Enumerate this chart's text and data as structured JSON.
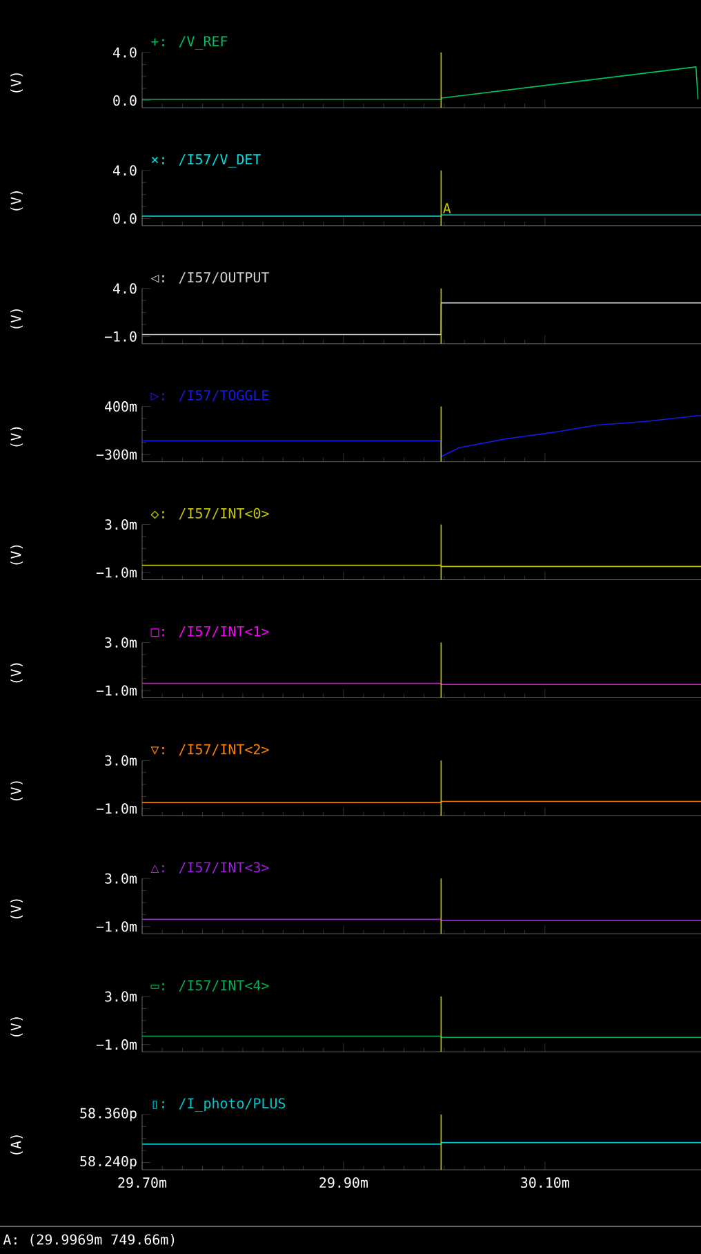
{
  "chart_data": [
    {
      "type": "line",
      "legend": "top left",
      "tick_labels": "y",
      "ylabel": "(V)",
      "xlim": [
        29.7,
        30.255
      ],
      "ylim": [
        -0.6,
        4.0
      ],
      "xticks": [
        {
          "value": 29.7,
          "label": null
        },
        {
          "value": 29.9,
          "label": null
        },
        {
          "value": 30.1,
          "label": null
        }
      ],
      "yticks": [
        {
          "value": 0.0,
          "label": "0.0"
        },
        {
          "value": 4.0,
          "label": "4.0"
        }
      ],
      "ref_lines": [
        {
          "axis": "x",
          "value": 29.9969,
          "color": "#c8c800"
        }
      ],
      "series": [
        {
          "name": "+: /V_REF",
          "color": "#00c060",
          "x": [
            29.7,
            29.9969,
            29.9975,
            30.25,
            30.252
          ],
          "values": [
            0.1,
            0.1,
            0.2,
            2.8,
            0.1
          ]
        }
      ]
    },
    {
      "type": "line",
      "legend": "top left",
      "tick_labels": "y",
      "ylabel": "(V)",
      "xlim": [
        29.7,
        30.255
      ],
      "ylim": [
        -0.6,
        4.0
      ],
      "xticks": [
        {
          "value": 29.7,
          "label": null
        },
        {
          "value": 29.9,
          "label": null
        },
        {
          "value": 30.1,
          "label": null
        }
      ],
      "yticks": [
        {
          "value": 0.0,
          "label": "0.0"
        },
        {
          "value": 4.0,
          "label": "4.0"
        }
      ],
      "ref_lines": [
        {
          "axis": "x",
          "value": 29.9969,
          "color": "#c8c800",
          "label": "A"
        }
      ],
      "series": [
        {
          "name": "×: /I57/V_DET",
          "color": "#00e0e0",
          "x": [
            29.7,
            29.9969,
            29.9975,
            30.255
          ],
          "values": [
            0.2,
            0.2,
            0.3,
            0.3
          ]
        }
      ]
    },
    {
      "type": "line",
      "legend": "top left",
      "tick_labels": "y",
      "ylabel": "(V)",
      "xlim": [
        29.7,
        30.255
      ],
      "ylim": [
        -1.75,
        4.0
      ],
      "xticks": [
        {
          "value": 29.7,
          "label": null
        },
        {
          "value": 29.9,
          "label": null
        },
        {
          "value": 30.1,
          "label": null
        }
      ],
      "yticks": [
        {
          "value": -1.0,
          "label": "−1.0"
        },
        {
          "value": 4.0,
          "label": "4.0"
        }
      ],
      "ref_lines": [
        {
          "axis": "x",
          "value": 29.9969,
          "color": "#c8c800"
        }
      ],
      "series": [
        {
          "name": "◁: /I57/OUTPUT",
          "color": "#d0d0d8",
          "x": [
            29.7,
            29.9969,
            29.997,
            30.255
          ],
          "values": [
            -0.8,
            -0.8,
            2.5,
            2.5
          ]
        }
      ]
    },
    {
      "type": "line",
      "legend": "top left",
      "tick_labels": "y",
      "ylabel": "(V)",
      "xlim": [
        29.7,
        30.255
      ],
      "ylim": [
        -405,
        400
      ],
      "xticks": [
        {
          "value": 29.7,
          "label": null
        },
        {
          "value": 29.9,
          "label": null
        },
        {
          "value": 30.1,
          "label": null
        }
      ],
      "yticks": [
        {
          "value": -300,
          "label": "−300m"
        },
        {
          "value": 400,
          "label": "400m"
        }
      ],
      "ref_lines": [
        {
          "axis": "x",
          "value": 29.9969,
          "color": "#c8c800"
        }
      ],
      "series": [
        {
          "name": "▷: /I57/TOGGLE",
          "color": "#1818e8",
          "x": [
            29.7,
            29.9969,
            29.997,
            30.015,
            30.062,
            30.107,
            30.152,
            30.199,
            30.255
          ],
          "values": [
            -100,
            -100,
            -330,
            -200,
            -70,
            20,
            130,
            180,
            270
          ]
        }
      ]
    },
    {
      "type": "line",
      "legend": "top left",
      "tick_labels": "y",
      "ylabel": "(V)",
      "xlim": [
        29.7,
        30.255
      ],
      "ylim": [
        -1.6,
        3.0
      ],
      "xticks": [
        {
          "value": 29.7,
          "label": null
        },
        {
          "value": 29.9,
          "label": null
        },
        {
          "value": 30.1,
          "label": null
        }
      ],
      "yticks": [
        {
          "value": -1.0,
          "label": "−1.0m"
        },
        {
          "value": 3.0,
          "label": "3.0m"
        }
      ],
      "ref_lines": [
        {
          "axis": "x",
          "value": 29.9969,
          "color": "#c8c800"
        }
      ],
      "series": [
        {
          "name": "◇: /I57/INT<0>",
          "color": "#c8c800",
          "x": [
            29.7,
            29.9969,
            29.997,
            30.255
          ],
          "values": [
            -0.4,
            -0.4,
            -0.5,
            -0.5
          ]
        }
      ]
    },
    {
      "type": "line",
      "legend": "top left",
      "tick_labels": "y",
      "ylabel": "(V)",
      "xlim": [
        29.7,
        30.255
      ],
      "ylim": [
        -1.6,
        3.0
      ],
      "xticks": [
        {
          "value": 29.7,
          "label": null
        },
        {
          "value": 29.9,
          "label": null
        },
        {
          "value": 30.1,
          "label": null
        }
      ],
      "yticks": [
        {
          "value": -1.0,
          "label": "−1.0m"
        },
        {
          "value": 3.0,
          "label": "3.0m"
        }
      ],
      "ref_lines": [
        {
          "axis": "x",
          "value": 29.9969,
          "color": "#c8c800"
        }
      ],
      "series": [
        {
          "name": "□: /I57/INT<1>",
          "color": "#ff00ff",
          "x": [
            29.7,
            29.9969,
            29.997,
            30.255
          ],
          "values": [
            -0.4,
            -0.4,
            -0.5,
            -0.5
          ]
        }
      ]
    },
    {
      "type": "line",
      "legend": "top left",
      "tick_labels": "y",
      "ylabel": "(V)",
      "xlim": [
        29.7,
        30.255
      ],
      "ylim": [
        -1.6,
        3.0
      ],
      "xticks": [
        {
          "value": 29.7,
          "label": null
        },
        {
          "value": 29.9,
          "label": null
        },
        {
          "value": 30.1,
          "label": null
        }
      ],
      "yticks": [
        {
          "value": -1.0,
          "label": "−1.0m"
        },
        {
          "value": 3.0,
          "label": "3.0m"
        }
      ],
      "ref_lines": [
        {
          "axis": "x",
          "value": 29.9969,
          "color": "#c8c800"
        }
      ],
      "series": [
        {
          "name": "▽: /I57/INT<2>",
          "color": "#ff8000",
          "x": [
            29.7,
            29.9969,
            29.997,
            30.255
          ],
          "values": [
            -0.5,
            -0.5,
            -0.4,
            -0.4
          ]
        }
      ]
    },
    {
      "type": "line",
      "legend": "top left",
      "tick_labels": "y",
      "ylabel": "(V)",
      "xlim": [
        29.7,
        30.255
      ],
      "ylim": [
        -1.6,
        3.0
      ],
      "xticks": [
        {
          "value": 29.7,
          "label": null
        },
        {
          "value": 29.9,
          "label": null
        },
        {
          "value": 30.1,
          "label": null
        }
      ],
      "yticks": [
        {
          "value": -1.0,
          "label": "−1.0m"
        },
        {
          "value": 3.0,
          "label": "3.0m"
        }
      ],
      "ref_lines": [
        {
          "axis": "x",
          "value": 29.9969,
          "color": "#c8c800"
        }
      ],
      "series": [
        {
          "name": "△: /I57/INT<3>",
          "color": "#a020e0",
          "x": [
            29.7,
            29.9969,
            29.997,
            30.255
          ],
          "values": [
            -0.4,
            -0.4,
            -0.5,
            -0.5
          ]
        }
      ]
    },
    {
      "type": "line",
      "legend": "top left",
      "tick_labels": "y",
      "ylabel": "(V)",
      "xlim": [
        29.7,
        30.255
      ],
      "ylim": [
        -1.6,
        3.0
      ],
      "xticks": [
        {
          "value": 29.7,
          "label": null
        },
        {
          "value": 29.9,
          "label": null
        },
        {
          "value": 30.1,
          "label": null
        }
      ],
      "yticks": [
        {
          "value": -1.0,
          "label": "−1.0m"
        },
        {
          "value": 3.0,
          "label": "3.0m"
        }
      ],
      "ref_lines": [
        {
          "axis": "x",
          "value": 29.9969,
          "color": "#c8c800"
        }
      ],
      "series": [
        {
          "name": "▭: /I57/INT<4>",
          "color": "#00b050",
          "x": [
            29.7,
            29.9969,
            29.997,
            30.255
          ],
          "values": [
            -0.3,
            -0.3,
            -0.4,
            -0.4
          ]
        }
      ]
    },
    {
      "type": "line",
      "legend": "top left",
      "ylabel": "(A)",
      "xlim": [
        29.7,
        30.255
      ],
      "ylim": [
        58.222,
        58.36
      ],
      "xticks": [
        {
          "value": 29.7,
          "label": "29.70m"
        },
        {
          "value": 29.9,
          "label": "29.90m"
        },
        {
          "value": 30.1,
          "label": "30.10m"
        }
      ],
      "yticks": [
        {
          "value": 58.24,
          "label": "58.240p"
        },
        {
          "value": 58.36,
          "label": "58.360p"
        }
      ],
      "ref_lines": [
        {
          "axis": "x",
          "value": 29.9969,
          "color": "#c8c800"
        }
      ],
      "annotations": [
        "A: (29.9969m 749.66m)"
      ],
      "series": [
        {
          "name": "▯: /I_photo/PLUS",
          "color": "#00c8d0",
          "x": [
            29.7,
            29.9969,
            29.997,
            30.255
          ],
          "values": [
            58.286,
            58.286,
            58.29,
            58.29
          ]
        }
      ]
    }
  ]
}
